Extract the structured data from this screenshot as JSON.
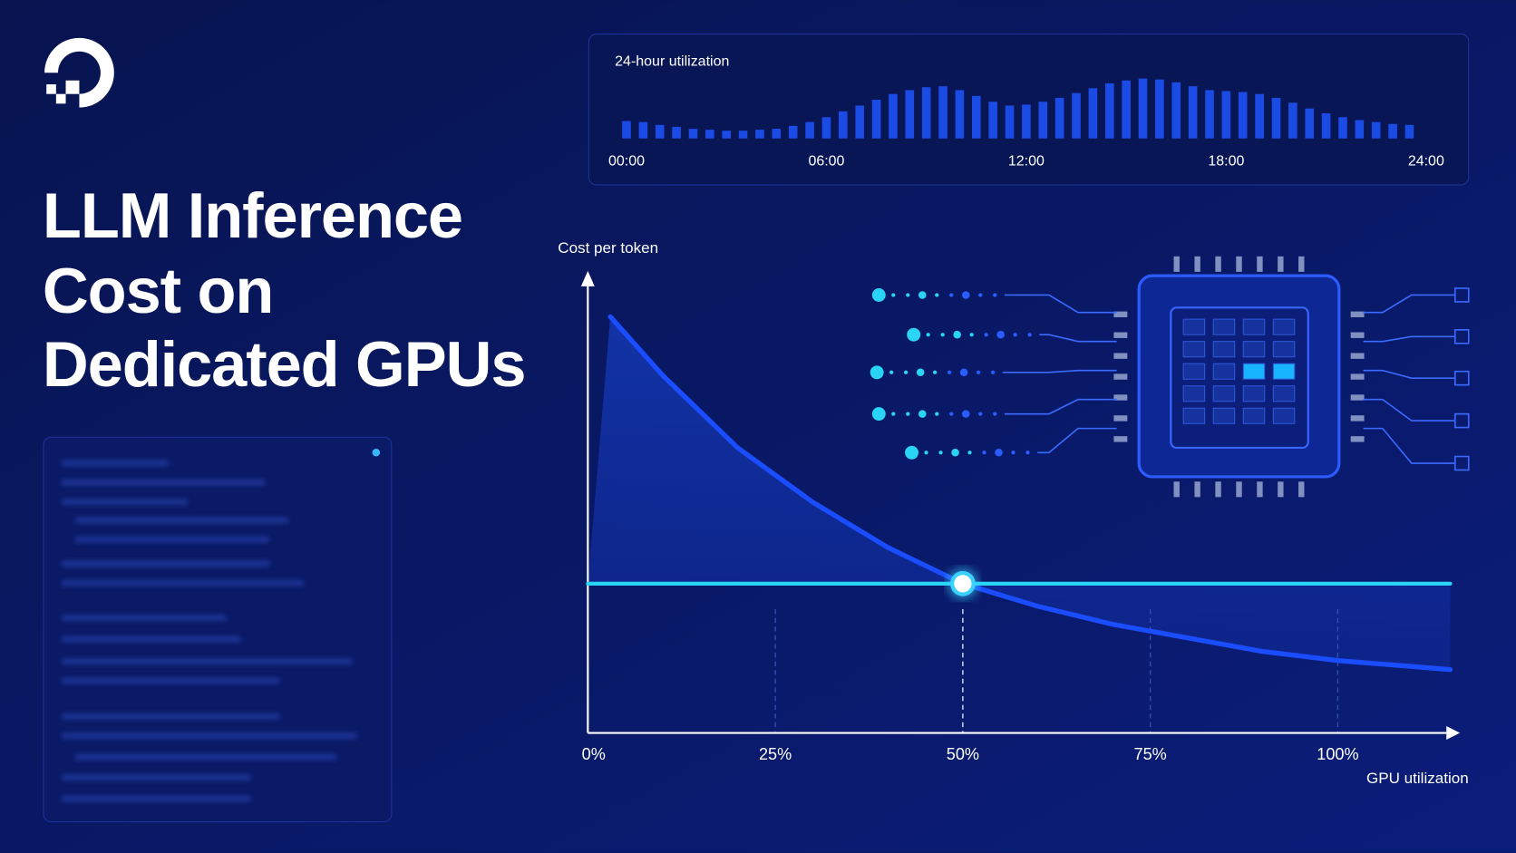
{
  "title_lines": [
    "LLM Inference",
    "Cost on",
    "Dedicated GPUs"
  ],
  "chart_data": [
    {
      "type": "bar",
      "title": "24-hour utilization",
      "color": "#1f55ff",
      "x": [
        0,
        0.5,
        1,
        1.5,
        2,
        2.5,
        3,
        3.5,
        4,
        4.5,
        5,
        5.5,
        6,
        6.5,
        7,
        7.5,
        8,
        8.5,
        9,
        9.5,
        10,
        10.5,
        11,
        11.5,
        12,
        12.5,
        13,
        13.5,
        14,
        14.5,
        15,
        15.5,
        16,
        16.5,
        17,
        17.5,
        18,
        18.5,
        19,
        19.5,
        20,
        20.5,
        21,
        21.5,
        22,
        22.5,
        23,
        23.5
      ],
      "values": [
        18,
        17,
        14,
        12,
        10,
        9,
        8,
        8,
        9,
        10,
        13,
        17,
        22,
        28,
        34,
        40,
        46,
        50,
        53,
        54,
        50,
        44,
        38,
        34,
        35,
        38,
        42,
        47,
        52,
        57,
        60,
        62,
        61,
        58,
        54,
        50,
        49,
        48,
        46,
        42,
        37,
        31,
        26,
        22,
        19,
        17,
        15,
        14
      ],
      "xlim": [
        0,
        24
      ],
      "ylim": [
        0,
        65
      ],
      "xticks": [
        {
          "value": 0,
          "label": "00:00"
        },
        {
          "value": 6,
          "label": "06:00"
        },
        {
          "value": 12,
          "label": "12:00"
        },
        {
          "value": 18,
          "label": "18:00"
        },
        {
          "value": 24,
          "label": "24:00"
        }
      ]
    },
    {
      "type": "line",
      "x_label": "GPU utilization",
      "y_label": "Cost per token",
      "xlim": [
        0,
        115
      ],
      "ylim": [
        0,
        100
      ],
      "xticks": [
        {
          "value": 0,
          "label": "0%"
        },
        {
          "value": 25,
          "label": "25%"
        },
        {
          "value": 50,
          "label": "50%"
        },
        {
          "value": 75,
          "label": "75%"
        },
        {
          "value": 100,
          "label": "100%"
        }
      ],
      "series": [
        {
          "color": "#1a4dff",
          "x": [
            3,
            10,
            20,
            30,
            40,
            50,
            60,
            70,
            80,
            90,
            100,
            115
          ],
          "values": [
            92,
            79,
            63,
            51,
            41,
            33,
            28,
            24,
            21,
            18,
            16,
            14
          ]
        },
        {
          "color": "#2ad4f5",
          "x": [
            0,
            115
          ],
          "values": [
            33,
            33
          ]
        }
      ]
    }
  ]
}
